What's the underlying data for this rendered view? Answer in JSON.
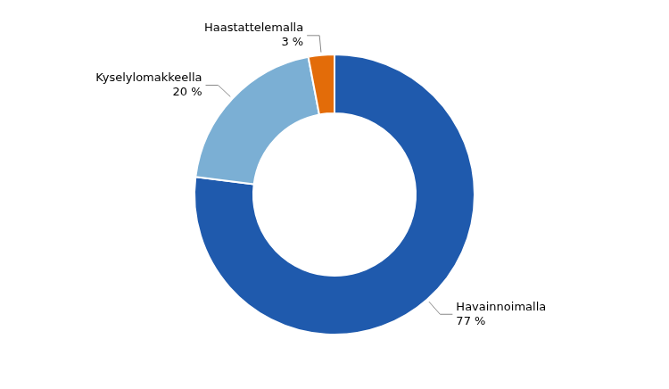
{
  "chart_data": {
    "type": "donut",
    "categories": [
      "Havainnoimalla",
      "Kyselylomakkeella",
      "Haastattelemalla"
    ],
    "values": [
      77,
      20,
      3
    ],
    "value_labels": [
      "77 %",
      "20 %",
      "3 %"
    ],
    "colors": [
      "#1f5aad",
      "#7bafd4",
      "#e36c09"
    ],
    "data_labels": true
  }
}
